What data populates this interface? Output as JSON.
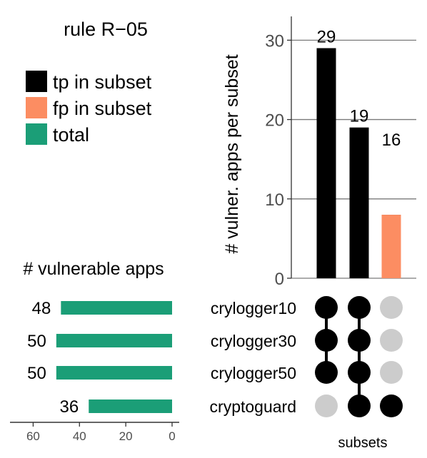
{
  "chart_data": {
    "type": "upset",
    "title": "rule R−05",
    "legend": {
      "placement": "top-left",
      "items": [
        {
          "label": "tp in subset",
          "color": "#000000"
        },
        {
          "label": "fp in subset",
          "color": "#fc8d62"
        },
        {
          "label": "total",
          "color": "#1b9e77"
        }
      ]
    },
    "intersection_bars": {
      "ylabel": "# vulner. apps per subset",
      "ylim": [
        0,
        33
      ],
      "ticks": [
        0,
        10,
        20,
        30
      ],
      "grid": true,
      "bars": [
        {
          "total": 29,
          "label": "29",
          "tp": 29,
          "fp": 0
        },
        {
          "total": 19,
          "label": "19",
          "tp": 19,
          "fp": 0
        },
        {
          "total": 16,
          "label": "16",
          "tp": 8,
          "fp": 8
        }
      ]
    },
    "set_sizes": {
      "title": "# vulnerable apps",
      "xlim": [
        0,
        70
      ],
      "ticks": [
        60,
        40,
        20,
        0
      ],
      "sets": [
        {
          "name": "crylogger10",
          "value": 48,
          "label": "48"
        },
        {
          "name": "crylogger30",
          "value": 50,
          "label": "50"
        },
        {
          "name": "crylogger50",
          "value": 50,
          "label": "50"
        },
        {
          "name": "cryptoguard",
          "value": 36,
          "label": "36"
        }
      ]
    },
    "matrix": {
      "xlabel": "subsets",
      "membership": [
        [
          true,
          true,
          true,
          false
        ],
        [
          true,
          true,
          true,
          true
        ],
        [
          false,
          false,
          false,
          true
        ]
      ]
    }
  }
}
